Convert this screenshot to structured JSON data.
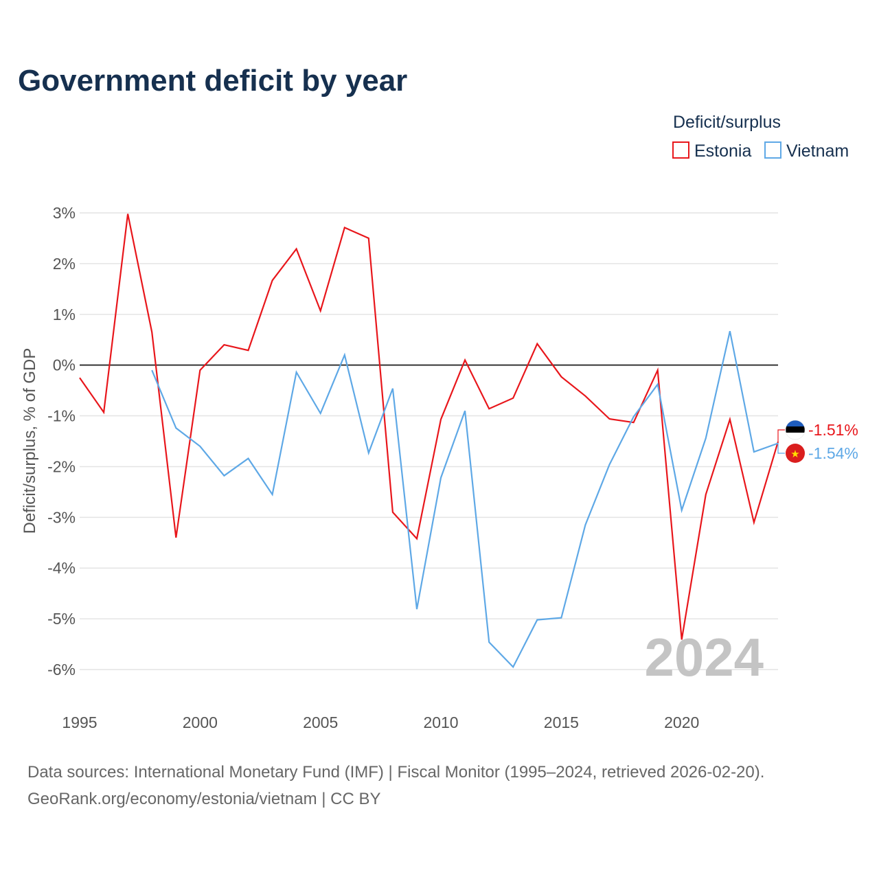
{
  "title": "Government deficit by year",
  "legend": {
    "title": "Deficit/surplus",
    "items": [
      {
        "name": "Estonia",
        "color": "#e8161b"
      },
      {
        "name": "Vietnam",
        "color": "#5ea8e6"
      }
    ]
  },
  "watermark_year": "2024",
  "source_line1": "Data sources: International Monetary Fund (IMF) | Fiscal Monitor (1995–2024, retrieved 2026-02-20).",
  "source_line2": "GeoRank.org/economy/estonia/vietnam | CC BY",
  "chart_data": {
    "type": "line",
    "title": "Government deficit by year",
    "xlabel": "",
    "ylabel": "Deficit/surplus, % of GDP",
    "xlim": [
      1995,
      2024
    ],
    "ylim": [
      -6.5,
      3.2
    ],
    "x_ticks": [
      1995,
      2000,
      2005,
      2010,
      2015,
      2020
    ],
    "y_ticks": [
      3,
      2,
      1,
      0,
      -1,
      -2,
      -3,
      -4,
      -5,
      -6
    ],
    "y_tick_labels": [
      "3%",
      "2%",
      "1%",
      "0%",
      "-1%",
      "-2%",
      "-3%",
      "-4%",
      "-5%",
      "-6%"
    ],
    "grid": true,
    "legend_position": "top-right",
    "series": [
      {
        "name": "Estonia",
        "color": "#e8161b",
        "x": [
          1995,
          1996,
          1997,
          1998,
          1999,
          2000,
          2001,
          2002,
          2003,
          2004,
          2005,
          2006,
          2007,
          2008,
          2009,
          2010,
          2011,
          2012,
          2013,
          2014,
          2015,
          2016,
          2017,
          2018,
          2019,
          2020,
          2021,
          2022,
          2023,
          2024
        ],
        "values": [
          -0.25,
          -0.93,
          2.98,
          0.65,
          -3.4,
          -0.1,
          0.4,
          0.29,
          1.67,
          2.29,
          1.07,
          2.71,
          2.5,
          -2.9,
          -3.42,
          -1.07,
          0.1,
          -0.86,
          -0.65,
          0.42,
          -0.23,
          -0.61,
          -1.06,
          -1.13,
          -0.1,
          -5.41,
          -2.55,
          -1.07,
          -3.1,
          -1.51
        ],
        "end_label": "-1.51%"
      },
      {
        "name": "Vietnam",
        "color": "#5ea8e6",
        "x": [
          1998,
          1999,
          2000,
          2001,
          2002,
          2003,
          2004,
          2005,
          2006,
          2007,
          2008,
          2009,
          2010,
          2011,
          2012,
          2013,
          2014,
          2015,
          2016,
          2017,
          2018,
          2019,
          2020,
          2021,
          2022,
          2023,
          2024
        ],
        "values": [
          -0.1,
          -1.24,
          -1.6,
          -2.18,
          -1.84,
          -2.55,
          -0.14,
          -0.95,
          0.2,
          -1.73,
          -0.46,
          -4.81,
          -2.22,
          -0.9,
          -5.46,
          -5.95,
          -5.02,
          -4.98,
          -3.15,
          -1.96,
          -1.02,
          -0.38,
          -2.86,
          -1.44,
          0.67,
          -1.71,
          -1.54
        ],
        "end_label": "-1.54%"
      }
    ]
  }
}
